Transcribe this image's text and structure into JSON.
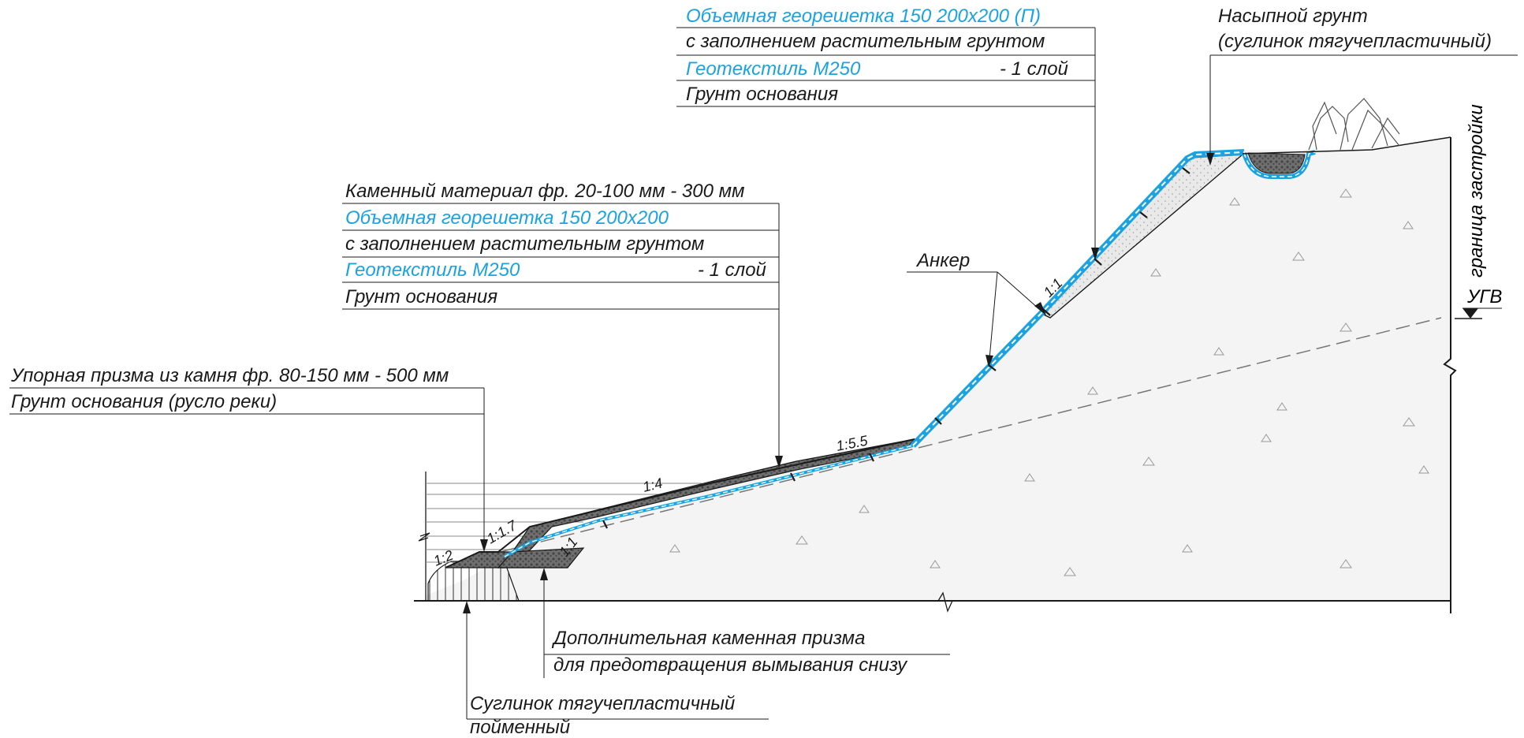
{
  "colors": {
    "black": "#1a1a1a",
    "blue": "#1aa3e0",
    "stone": "#7f7f7f",
    "soil": "#f2f2f2",
    "water": "#888888"
  },
  "callouts": {
    "top": {
      "lines": [
        {
          "text": "Объемная георешетка 150 200х200 (П)",
          "blue": true
        },
        {
          "text": "с заполнением растительным грунтом",
          "blue": false
        },
        {
          "text": "Геотекстиль М250",
          "blue": true,
          "suffix": "- 1 слой"
        },
        {
          "text": "Грунт основания",
          "blue": false
        }
      ]
    },
    "fill_soil": {
      "lines": [
        "Насыпной грунт",
        "(суглинок тягучепластичный)"
      ]
    },
    "mid": {
      "lines": [
        {
          "text": "Каменный материал фр. 20-100 мм - 300 мм",
          "blue": false
        },
        {
          "text": "Объемная георешетка 150 200х200",
          "blue": true
        },
        {
          "text": "с заполнением растительным грунтом",
          "blue": false
        },
        {
          "text": "Геотекстиль М250",
          "blue": true,
          "suffix": "- 1 слой"
        },
        {
          "text": "Грунт основания",
          "blue": false
        }
      ]
    },
    "toe": {
      "lines": [
        "Упорная призма из камня фр. 80-150 мм - 500 мм",
        "Грунт основания (русло реки)"
      ]
    },
    "anchor": "Анкер",
    "extra_prism": {
      "lines": [
        "Дополнительная каменная призма",
        "для предотвращения вымывания снизу"
      ]
    },
    "loam": {
      "lines": [
        "Суглинок тягучепластичный",
        "пойменный"
      ]
    },
    "boundary": "граница застройки",
    "ugv": "УГВ"
  },
  "slope_labels": {
    "upper": "1:1",
    "middle": "1:5.5",
    "lower": "1:4",
    "toe_inner": "1:1.7",
    "toe_outer": "1:2",
    "bottom": "1:1"
  }
}
